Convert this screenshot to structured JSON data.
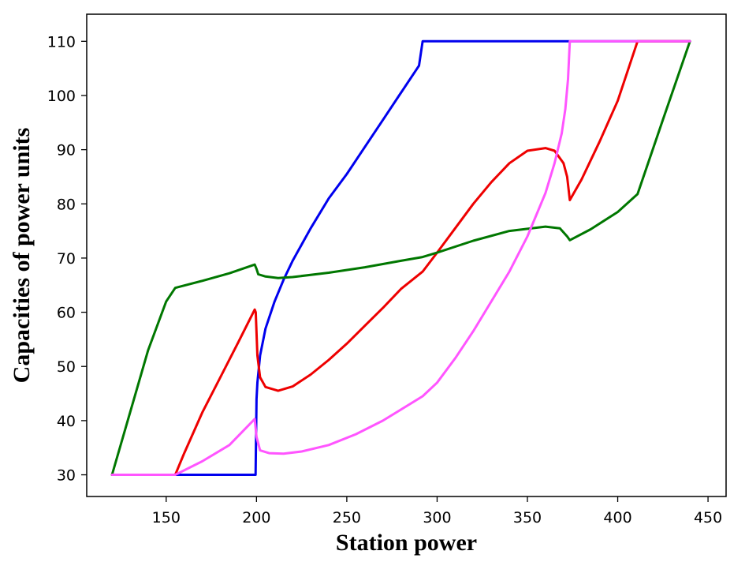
{
  "chart_data": {
    "type": "line",
    "title": "",
    "xlabel": "Station power",
    "ylabel": "Capacities of power units",
    "xlim": [
      106,
      460
    ],
    "ylim": [
      26,
      115
    ],
    "xticks": [
      150,
      200,
      250,
      300,
      350,
      400,
      450
    ],
    "yticks": [
      30,
      40,
      50,
      60,
      70,
      80,
      90,
      100,
      110
    ],
    "grid": false,
    "legend": "none",
    "series": [
      {
        "color": "#0000ee",
        "points": [
          [
            120,
            30
          ],
          [
            155,
            30
          ],
          [
            199.5,
            30
          ],
          [
            200,
            44
          ],
          [
            200.5,
            47
          ],
          [
            202,
            52
          ],
          [
            205,
            57
          ],
          [
            210,
            62
          ],
          [
            215,
            66
          ],
          [
            220,
            69.5
          ],
          [
            230,
            75.5
          ],
          [
            240,
            81
          ],
          [
            250,
            85.5
          ],
          [
            260,
            90.5
          ],
          [
            270,
            95.5
          ],
          [
            280,
            100.5
          ],
          [
            290,
            105.5
          ],
          [
            292,
            110
          ],
          [
            373,
            110
          ],
          [
            440,
            110
          ]
        ]
      },
      {
        "color": "#ee0000",
        "points": [
          [
            120,
            30
          ],
          [
            155,
            30
          ],
          [
            160,
            34
          ],
          [
            170,
            41.5
          ],
          [
            180,
            48
          ],
          [
            190,
            54.5
          ],
          [
            199,
            60.5
          ],
          [
            199.6,
            60
          ],
          [
            200.5,
            52
          ],
          [
            202,
            48
          ],
          [
            205,
            46.2
          ],
          [
            212,
            45.5
          ],
          [
            220,
            46.3
          ],
          [
            230,
            48.5
          ],
          [
            240,
            51.2
          ],
          [
            250,
            54.2
          ],
          [
            260,
            57.5
          ],
          [
            270,
            60.8
          ],
          [
            280,
            64.3
          ],
          [
            292,
            67.5
          ],
          [
            300,
            71
          ],
          [
            310,
            75.5
          ],
          [
            320,
            80
          ],
          [
            330,
            84
          ],
          [
            340,
            87.5
          ],
          [
            350,
            89.8
          ],
          [
            360,
            90.3
          ],
          [
            365,
            89.8
          ],
          [
            370,
            87.5
          ],
          [
            372,
            85
          ],
          [
            373.5,
            80.7
          ],
          [
            380,
            84.5
          ],
          [
            390,
            91.5
          ],
          [
            400,
            99
          ],
          [
            411,
            110
          ],
          [
            440,
            110
          ]
        ]
      },
      {
        "color": "#007700",
        "points": [
          [
            120,
            30
          ],
          [
            130,
            41.5
          ],
          [
            140,
            53
          ],
          [
            150,
            62
          ],
          [
            155,
            64.5
          ],
          [
            170,
            65.8
          ],
          [
            185,
            67.2
          ],
          [
            199,
            68.8
          ],
          [
            200,
            68
          ],
          [
            201,
            67
          ],
          [
            205,
            66.6
          ],
          [
            212,
            66.3
          ],
          [
            220,
            66.5
          ],
          [
            240,
            67.3
          ],
          [
            260,
            68.3
          ],
          [
            280,
            69.5
          ],
          [
            292,
            70.2
          ],
          [
            300,
            71
          ],
          [
            320,
            73.2
          ],
          [
            340,
            75
          ],
          [
            360,
            75.8
          ],
          [
            368,
            75.5
          ],
          [
            372,
            74
          ],
          [
            373.5,
            73.3
          ],
          [
            385,
            75.3
          ],
          [
            400,
            78.5
          ],
          [
            411,
            81.8
          ],
          [
            425,
            95.5
          ],
          [
            440,
            110
          ]
        ]
      },
      {
        "color": "#ff55ff",
        "points": [
          [
            120,
            30
          ],
          [
            155,
            30
          ],
          [
            170,
            32.5
          ],
          [
            185,
            35.5
          ],
          [
            199,
            40.3
          ],
          [
            200,
            37
          ],
          [
            202,
            34.5
          ],
          [
            207,
            34
          ],
          [
            215,
            33.9
          ],
          [
            225,
            34.3
          ],
          [
            240,
            35.5
          ],
          [
            255,
            37.5
          ],
          [
            270,
            40
          ],
          [
            292,
            44.5
          ],
          [
            300,
            47
          ],
          [
            310,
            51.5
          ],
          [
            320,
            56.5
          ],
          [
            330,
            62
          ],
          [
            340,
            67.5
          ],
          [
            350,
            74
          ],
          [
            360,
            82
          ],
          [
            365,
            87.5
          ],
          [
            369,
            93
          ],
          [
            371,
            97.5
          ],
          [
            372.5,
            103
          ],
          [
            373.5,
            110
          ],
          [
            440,
            110
          ]
        ]
      }
    ]
  }
}
